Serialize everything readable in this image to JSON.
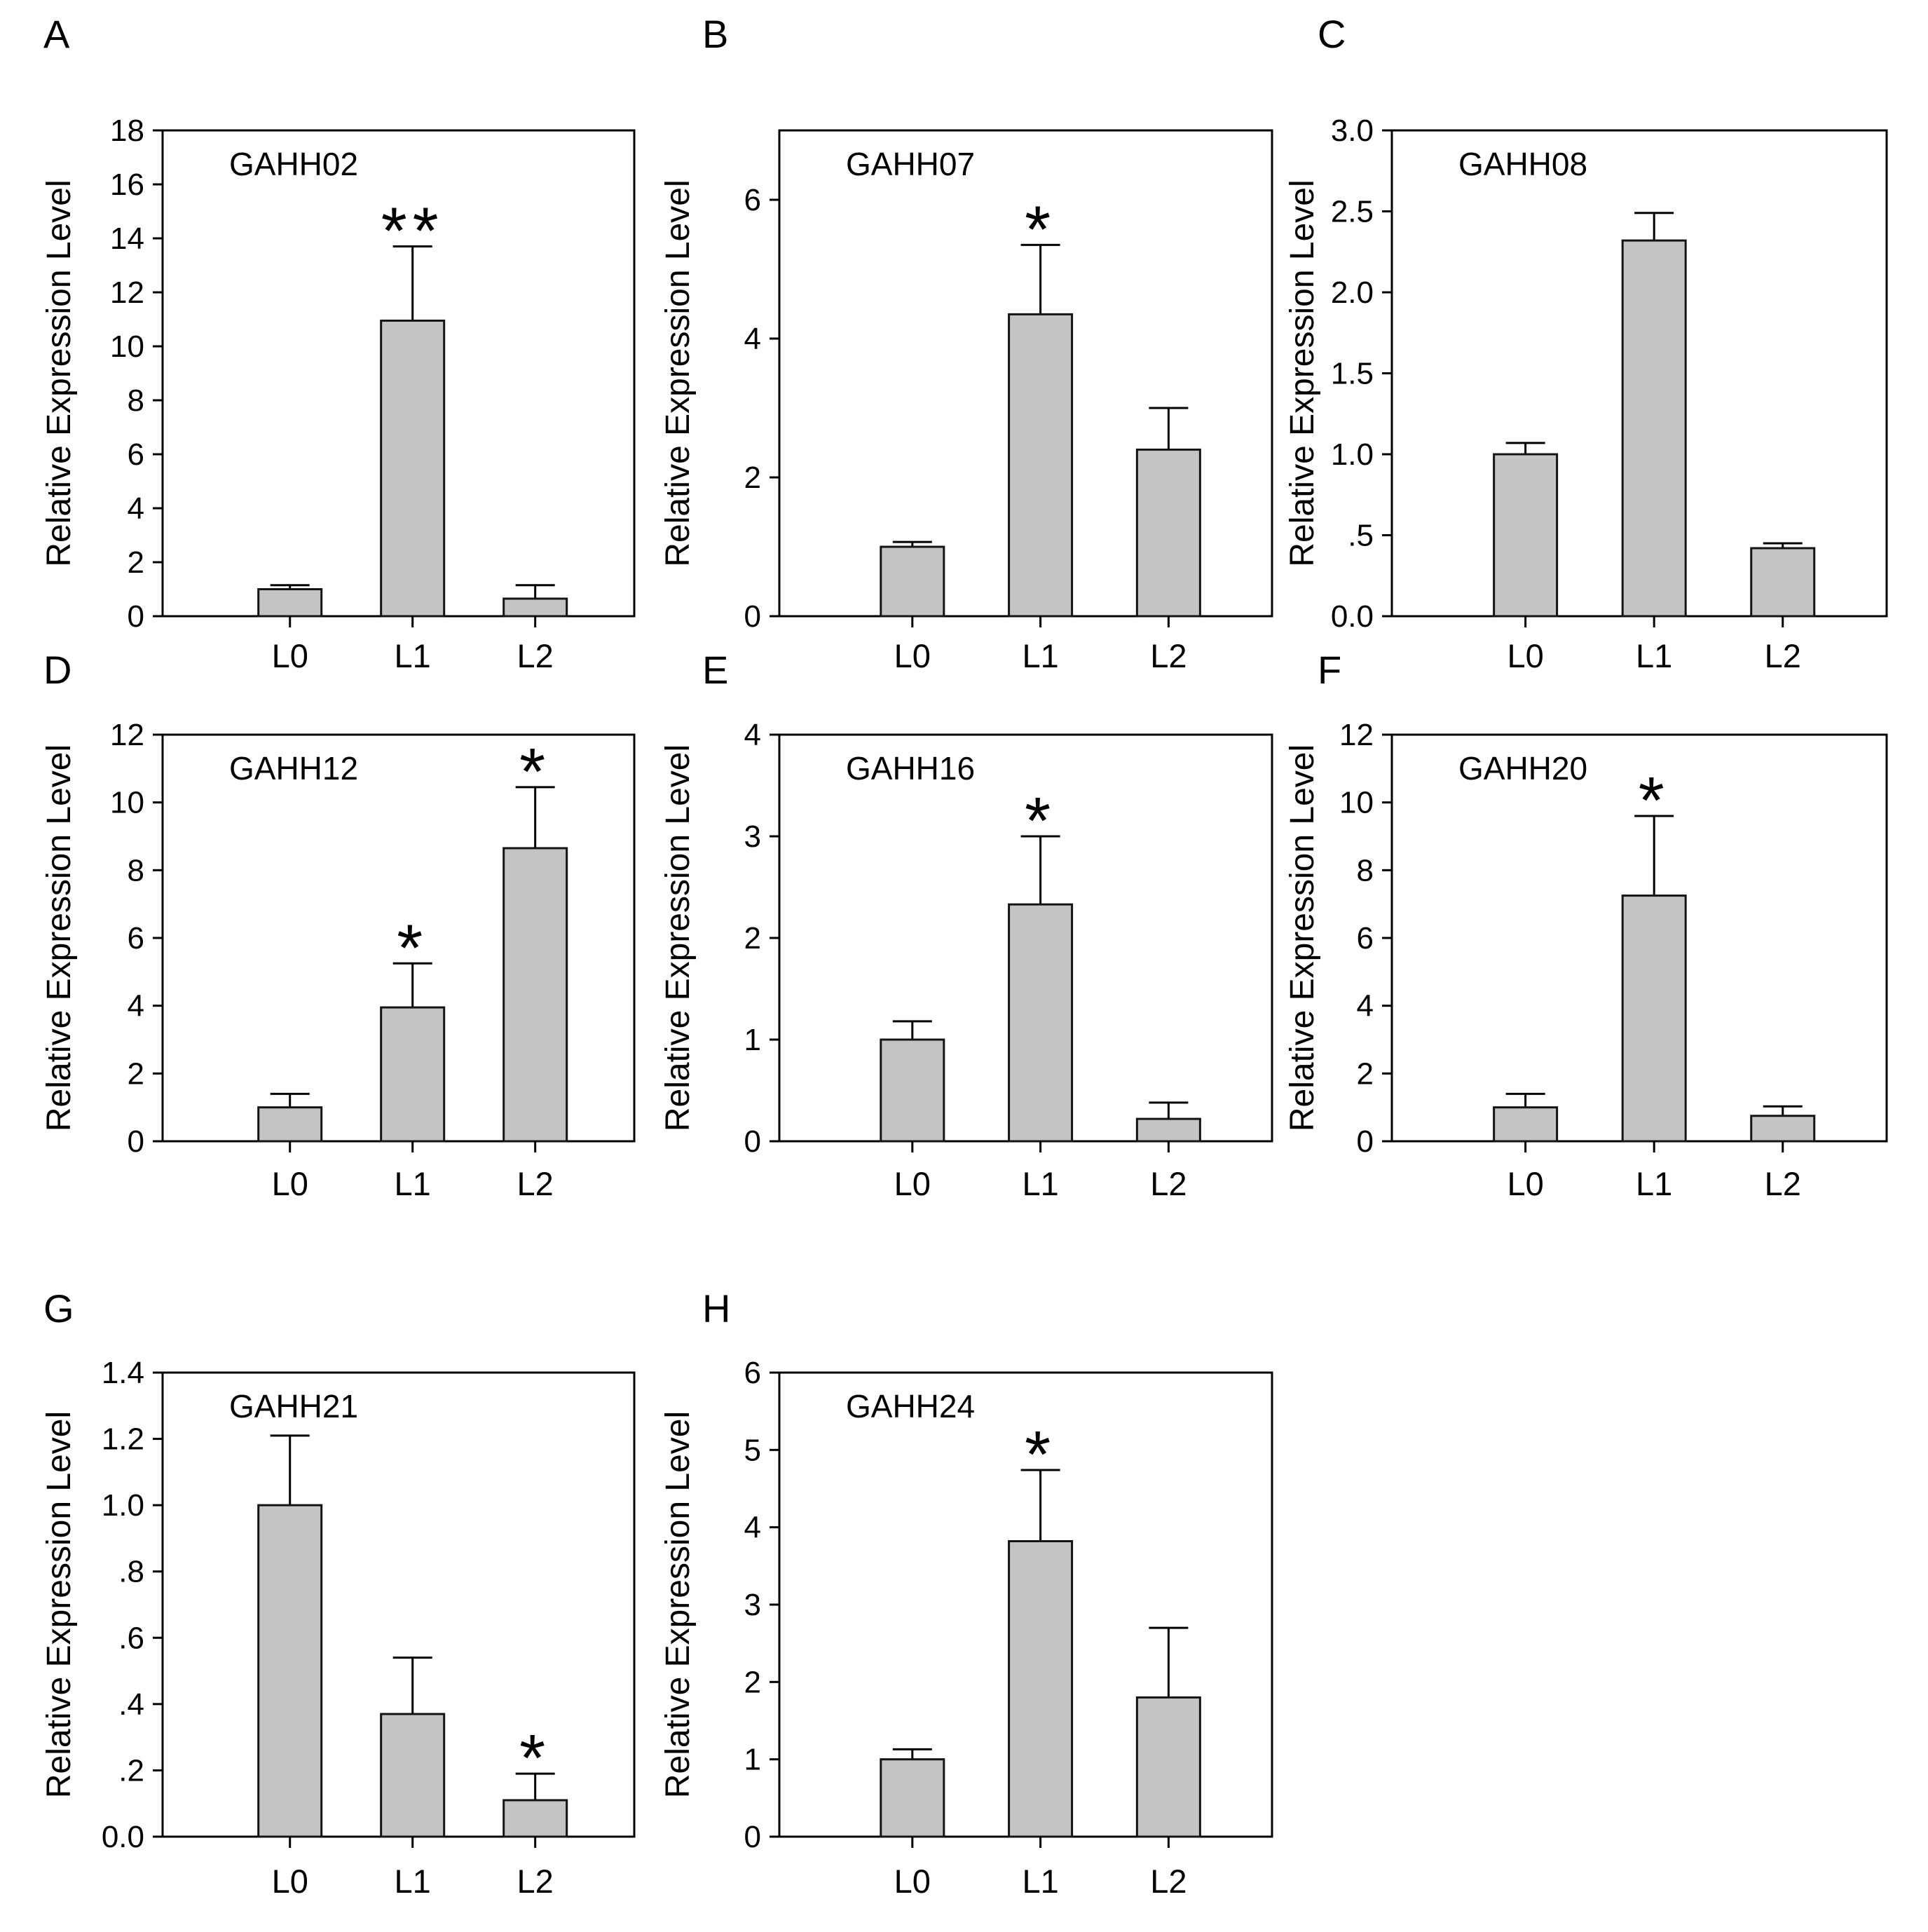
{
  "figure": {
    "background": "#ffffff",
    "bar_fill": "#c4c4c4",
    "bar_edge": "#141414",
    "ylabel": "Relative Expression Level",
    "x_categories": [
      "L0",
      "L1",
      "L2"
    ]
  },
  "chart_data": [
    {
      "type": "bar",
      "panel": "A",
      "title": "GAHH02",
      "categories": [
        "L0",
        "L1",
        "L2"
      ],
      "values": [
        1.0,
        10.95,
        0.65
      ],
      "errors": [
        0.15,
        2.75,
        0.5
      ],
      "significance": [
        "",
        "**",
        ""
      ],
      "xlabel": "",
      "ylabel": "Relative Expression Level",
      "ylim": [
        0,
        18
      ],
      "yticks": [
        0,
        2,
        4,
        6,
        8,
        10,
        12,
        14,
        16,
        18
      ],
      "ytick_labels": [
        "0",
        "2",
        "4",
        "6",
        "8",
        "10",
        "12",
        "14",
        "16",
        "18"
      ],
      "grid": "off",
      "legend": "none"
    },
    {
      "type": "bar",
      "panel": "B",
      "title": "GAHH07",
      "categories": [
        "L0",
        "L1",
        "L2"
      ],
      "values": [
        1.0,
        4.35,
        2.4
      ],
      "errors": [
        0.07,
        1.0,
        0.6
      ],
      "significance": [
        "",
        "*",
        ""
      ],
      "xlabel": "",
      "ylabel": "Relative Expression Level",
      "ylim": [
        0,
        7
      ],
      "yticks": [
        0,
        2,
        4,
        6
      ],
      "ytick_labels": [
        "0",
        "2",
        "4",
        "6"
      ],
      "grid": "off",
      "legend": "none"
    },
    {
      "type": "bar",
      "panel": "C",
      "title": "GAHH08",
      "categories": [
        "L0",
        "L1",
        "L2"
      ],
      "values": [
        1.0,
        2.32,
        0.42
      ],
      "errors": [
        0.07,
        0.17,
        0.03
      ],
      "significance": [
        "",
        "",
        ""
      ],
      "xlabel": "",
      "ylabel": "Relative Expression Level",
      "ylim": [
        0,
        3
      ],
      "yticks": [
        0,
        0.5,
        1.0,
        1.5,
        2.0,
        2.5,
        3.0
      ],
      "ytick_labels": [
        "0.0",
        ".5",
        "1.0",
        "1.5",
        "2.0",
        "2.5",
        "3.0"
      ],
      "grid": "off",
      "legend": "none"
    },
    {
      "type": "bar",
      "panel": "D",
      "title": "GAHH12",
      "categories": [
        "L0",
        "L1",
        "L2"
      ],
      "values": [
        1.0,
        3.95,
        8.65
      ],
      "errors": [
        0.4,
        1.3,
        1.8
      ],
      "significance": [
        "",
        "*",
        "*"
      ],
      "xlabel": "",
      "ylabel": "Relative Expression Level",
      "ylim": [
        0,
        12
      ],
      "yticks": [
        0,
        2,
        4,
        6,
        8,
        10,
        12
      ],
      "ytick_labels": [
        "0",
        "2",
        "4",
        "6",
        "8",
        "10",
        "12"
      ],
      "grid": "off",
      "legend": "none"
    },
    {
      "type": "bar",
      "panel": "E",
      "title": "GAHH16",
      "categories": [
        "L0",
        "L1",
        "L2"
      ],
      "values": [
        1.0,
        2.33,
        0.22
      ],
      "errors": [
        0.18,
        0.67,
        0.16
      ],
      "significance": [
        "",
        "*",
        ""
      ],
      "xlabel": "",
      "ylabel": "Relative Expression Level",
      "ylim": [
        0,
        4
      ],
      "yticks": [
        0,
        1,
        2,
        3,
        4
      ],
      "ytick_labels": [
        "0",
        "1",
        "2",
        "3",
        "4"
      ],
      "grid": "off",
      "legend": "none"
    },
    {
      "type": "bar",
      "panel": "F",
      "title": "GAHH20",
      "categories": [
        "L0",
        "L1",
        "L2"
      ],
      "values": [
        1.0,
        7.25,
        0.75
      ],
      "errors": [
        0.4,
        2.35,
        0.28
      ],
      "significance": [
        "",
        "*",
        ""
      ],
      "xlabel": "",
      "ylabel": "Relative Expression Level",
      "ylim": [
        0,
        12
      ],
      "yticks": [
        0,
        2,
        4,
        6,
        8,
        10,
        12
      ],
      "ytick_labels": [
        "0",
        "2",
        "4",
        "6",
        "8",
        "10",
        "12"
      ],
      "grid": "off",
      "legend": "none"
    },
    {
      "type": "bar",
      "panel": "G",
      "title": "GAHH21",
      "categories": [
        "L0",
        "L1",
        "L2"
      ],
      "values": [
        1.0,
        0.37,
        0.11
      ],
      "errors": [
        0.21,
        0.17,
        0.08
      ],
      "significance": [
        "",
        "",
        "*"
      ],
      "xlabel": "",
      "ylabel": "Relative Expression Level",
      "ylim": [
        0,
        1.4
      ],
      "yticks": [
        0,
        0.2,
        0.4,
        0.6,
        0.8,
        1.0,
        1.2,
        1.4
      ],
      "ytick_labels": [
        "0.0",
        ".2",
        ".4",
        ".6",
        ".8",
        "1.0",
        "1.2",
        "1.4"
      ],
      "grid": "off",
      "legend": "none"
    },
    {
      "type": "bar",
      "panel": "H",
      "title": "GAHH24",
      "categories": [
        "L0",
        "L1",
        "L2"
      ],
      "values": [
        1.0,
        3.82,
        1.8
      ],
      "errors": [
        0.13,
        0.92,
        0.9
      ],
      "significance": [
        "",
        "*",
        ""
      ],
      "xlabel": "",
      "ylabel": "Relative Expression Level",
      "ylim": [
        0,
        6
      ],
      "yticks": [
        0,
        1,
        2,
        3,
        4,
        5,
        6
      ],
      "ytick_labels": [
        "0",
        "1",
        "2",
        "3",
        "4",
        "5",
        "6"
      ],
      "grid": "off",
      "legend": "none"
    }
  ]
}
